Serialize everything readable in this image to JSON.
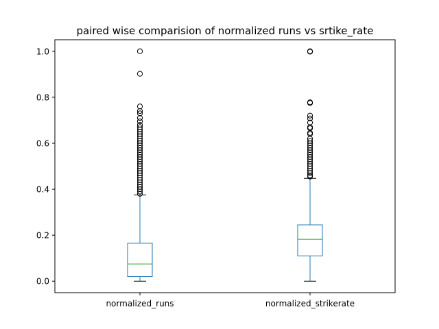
{
  "chart_data": {
    "type": "box",
    "title": "paired wise comparision of normalized runs vs srtike_rate",
    "xlabel": "",
    "ylabel": "",
    "ylim": [
      -0.05,
      1.05
    ],
    "yticks": [
      0.0,
      0.2,
      0.4,
      0.6,
      0.8,
      1.0
    ],
    "ytick_labels": [
      "0.0",
      "0.2",
      "0.4",
      "0.6",
      "0.8",
      "1.0"
    ],
    "grid": false,
    "colors": {
      "box": "#1f77b4",
      "median": "#2ca02c",
      "whisker": "#1f77b4",
      "cap": "#000000",
      "outlier": "#000000"
    },
    "series": [
      {
        "name": "normalized_runs",
        "min": 0.0,
        "q1": 0.02,
        "median": 0.075,
        "q3": 0.165,
        "max": 0.375,
        "outliers": [
          1.0,
          0.902,
          0.76,
          0.74,
          0.73,
          0.71,
          0.695,
          0.68,
          0.67,
          0.66,
          0.65,
          0.64,
          0.63,
          0.62,
          0.61,
          0.6,
          0.59,
          0.58,
          0.57,
          0.56,
          0.55,
          0.54,
          0.53,
          0.52,
          0.51,
          0.5,
          0.49,
          0.48,
          0.47,
          0.46,
          0.45,
          0.44,
          0.43,
          0.42,
          0.41,
          0.4,
          0.39,
          0.38
        ]
      },
      {
        "name": "normalized_strikerate",
        "min": 0.0,
        "q1": 0.11,
        "median": 0.182,
        "q3": 0.245,
        "max": 0.447,
        "outliers": [
          1.0,
          0.998,
          0.778,
          0.775,
          0.72,
          0.708,
          0.69,
          0.67,
          0.665,
          0.645,
          0.64,
          0.62,
          0.61,
          0.6,
          0.59,
          0.58,
          0.57,
          0.56,
          0.55,
          0.54,
          0.53,
          0.52,
          0.51,
          0.5,
          0.49,
          0.48,
          0.47,
          0.46,
          0.455
        ]
      }
    ]
  }
}
